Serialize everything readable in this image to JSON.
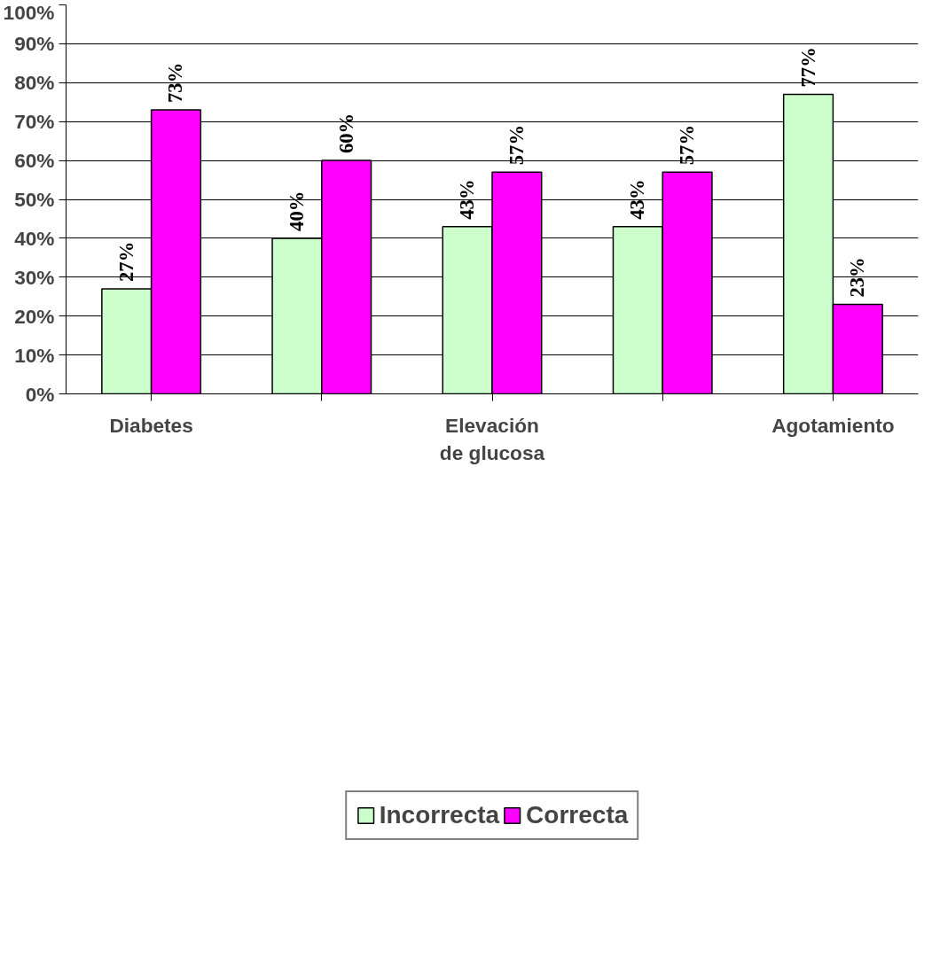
{
  "chart_data": {
    "type": "bar",
    "categories": [
      "Diabetes",
      null,
      "Elevación\nde glucosa",
      null,
      "Agotamiento"
    ],
    "series": [
      {
        "name": "Incorrecta",
        "color": "#ccffcc",
        "values": [
          27,
          40,
          43,
          43,
          77
        ],
        "value_labels": [
          "27%",
          "40%",
          "43%",
          "43%",
          "77%"
        ]
      },
      {
        "name": "Correcta",
        "color": "#ff00ff",
        "values": [
          73,
          60,
          57,
          57,
          23
        ],
        "value_labels": [
          "73%",
          "60%",
          "57%",
          "57%",
          "23%"
        ]
      }
    ],
    "ylim": [
      0,
      100
    ],
    "yticks": [
      {
        "value": 0,
        "label": "0%"
      },
      {
        "value": 10,
        "label": "10%"
      },
      {
        "value": 20,
        "label": "20%"
      },
      {
        "value": 30,
        "label": "30%"
      },
      {
        "value": 40,
        "label": "40%"
      },
      {
        "value": 50,
        "label": "50%"
      },
      {
        "value": 60,
        "label": "60%"
      },
      {
        "value": 70,
        "label": "70%"
      },
      {
        "value": 80,
        "label": "80%"
      },
      {
        "value": 90,
        "label": "90%"
      },
      {
        "value": 100,
        "label": "100%"
      }
    ],
    "grid": "y",
    "legend": "bottom"
  }
}
